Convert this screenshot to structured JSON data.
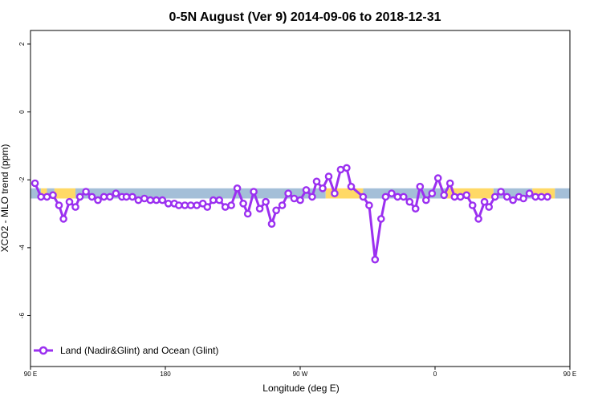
{
  "chart_data": {
    "type": "line",
    "title": "0-5N August (Ver 9)   2014-09-06 to 2018-12-31",
    "xlabel": "Longitude (deg E)",
    "ylabel": "XCO2 - MLO trend (ppm)",
    "xlim": [
      90,
      450
    ],
    "ylim": [
      -7.5,
      2.4
    ],
    "x_ticks": [
      {
        "value": 90,
        "label": "90 E"
      },
      {
        "value": 180,
        "label": "180"
      },
      {
        "value": 270,
        "label": "90 W"
      },
      {
        "value": 360,
        "label": "0"
      },
      {
        "value": 450,
        "label": "90 E"
      }
    ],
    "x_tick_labels": [
      "90 E",
      "180",
      "90 W",
      "0",
      "90 E"
    ],
    "y_ticks": [
      2,
      0,
      -2,
      -4,
      -6
    ],
    "y_tick_labels": [
      "2",
      "0",
      "-2",
      "-4",
      "-6"
    ],
    "grid": false,
    "legend_position": "bottom-left",
    "surface_band": {
      "y_range": [
        -2.55,
        -2.25
      ],
      "land_color": "#FFD966",
      "ocean_color": "#A4BFD8",
      "segments": [
        {
          "type": "ocean",
          "x": [
            90,
            97
          ]
        },
        {
          "type": "land",
          "x": [
            97,
            101
          ]
        },
        {
          "type": "ocean",
          "x": [
            101,
            106
          ]
        },
        {
          "type": "land",
          "x": [
            106,
            120
          ]
        },
        {
          "type": "ocean",
          "x": [
            120,
            287
          ]
        },
        {
          "type": "land",
          "x": [
            287,
            312
          ]
        },
        {
          "type": "ocean",
          "x": [
            312,
            368
          ]
        },
        {
          "type": "land",
          "x": [
            368,
            399
          ]
        },
        {
          "type": "ocean",
          "x": [
            399,
            425
          ]
        },
        {
          "type": "land",
          "x": [
            425,
            440
          ]
        },
        {
          "type": "ocean",
          "x": [
            440,
            450
          ]
        }
      ]
    },
    "series": [
      {
        "name": "Land (Nadir&Glint) and Ocean (Glint)",
        "color": "#9B30F0",
        "points": [
          [
            93,
            -2.1
          ],
          [
            97,
            -2.5
          ],
          [
            101,
            -2.5
          ],
          [
            105,
            -2.45
          ],
          [
            109,
            -2.75
          ],
          [
            112,
            -3.15
          ],
          [
            116,
            -2.65
          ],
          [
            120,
            -2.8
          ],
          [
            123,
            -2.5
          ],
          [
            127,
            -2.35
          ],
          [
            131,
            -2.5
          ],
          [
            135,
            -2.6
          ],
          [
            139,
            -2.5
          ],
          [
            143,
            -2.5
          ],
          [
            147,
            -2.4
          ],
          [
            151,
            -2.5
          ],
          [
            154,
            -2.5
          ],
          [
            158,
            -2.5
          ],
          [
            162,
            -2.6
          ],
          [
            166,
            -2.55
          ],
          [
            170,
            -2.6
          ],
          [
            174,
            -2.6
          ],
          [
            178,
            -2.6
          ],
          [
            182,
            -2.7
          ],
          [
            186,
            -2.7
          ],
          [
            189,
            -2.75
          ],
          [
            193,
            -2.75
          ],
          [
            197,
            -2.75
          ],
          [
            201,
            -2.75
          ],
          [
            205,
            -2.7
          ],
          [
            208,
            -2.8
          ],
          [
            212,
            -2.6
          ],
          [
            216,
            -2.6
          ],
          [
            220,
            -2.8
          ],
          [
            224,
            -2.75
          ],
          [
            228,
            -2.25
          ],
          [
            232,
            -2.7
          ],
          [
            235,
            -3.0
          ],
          [
            239,
            -2.35
          ],
          [
            243,
            -2.85
          ],
          [
            247,
            -2.65
          ],
          [
            251,
            -3.3
          ],
          [
            254,
            -2.9
          ],
          [
            258,
            -2.75
          ],
          [
            262,
            -2.4
          ],
          [
            266,
            -2.55
          ],
          [
            270,
            -2.6
          ],
          [
            274,
            -2.3
          ],
          [
            278,
            -2.5
          ],
          [
            281,
            -2.05
          ],
          [
            285,
            -2.25
          ],
          [
            289,
            -1.9
          ],
          [
            293,
            -2.4
          ],
          [
            297,
            -1.7
          ],
          [
            301,
            -1.65
          ],
          [
            304,
            -2.2
          ],
          [
            312,
            -2.5
          ],
          [
            316,
            -2.75
          ],
          [
            320,
            -4.35
          ],
          [
            324,
            -3.15
          ],
          [
            327,
            -2.5
          ],
          [
            331,
            -2.4
          ],
          [
            335,
            -2.5
          ],
          [
            339,
            -2.5
          ],
          [
            343,
            -2.65
          ],
          [
            347,
            -2.85
          ],
          [
            350,
            -2.2
          ],
          [
            354,
            -2.6
          ],
          [
            358,
            -2.4
          ],
          [
            362,
            -1.95
          ],
          [
            366,
            -2.45
          ],
          [
            370,
            -2.1
          ],
          [
            373,
            -2.5
          ],
          [
            377,
            -2.5
          ],
          [
            381,
            -2.45
          ],
          [
            385,
            -2.75
          ],
          [
            389,
            -3.15
          ],
          [
            393,
            -2.65
          ],
          [
            396,
            -2.8
          ],
          [
            400,
            -2.5
          ],
          [
            404,
            -2.35
          ],
          [
            408,
            -2.5
          ],
          [
            412,
            -2.6
          ],
          [
            416,
            -2.5
          ],
          [
            419,
            -2.55
          ],
          [
            423,
            -2.4
          ],
          [
            427,
            -2.5
          ],
          [
            431,
            -2.5
          ],
          [
            435,
            -2.5
          ]
        ]
      }
    ]
  }
}
